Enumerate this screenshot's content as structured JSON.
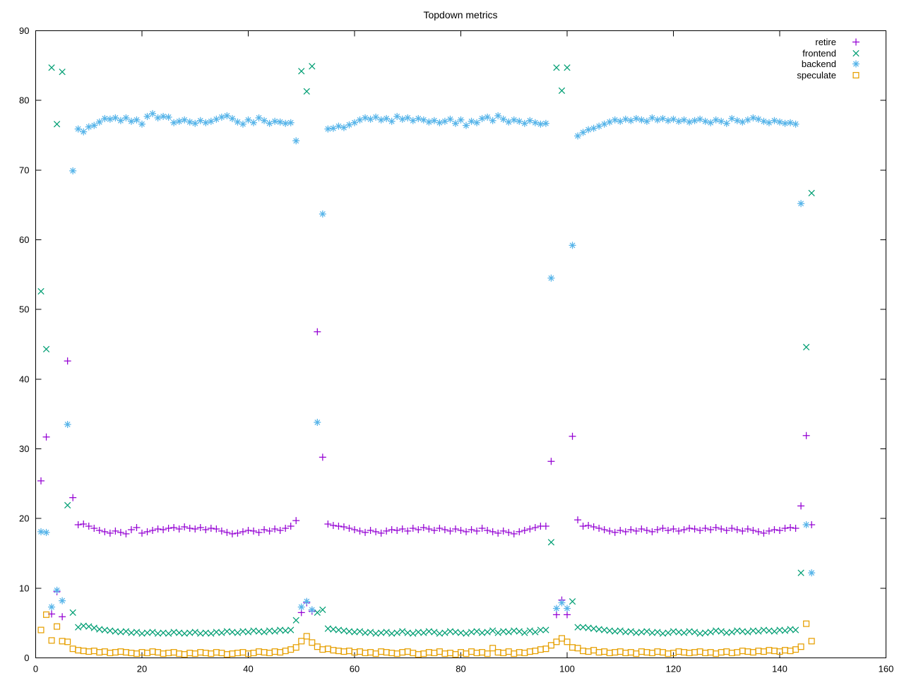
{
  "title": "Topdown metrics",
  "chart_data": {
    "type": "scatter",
    "title": "Topdown metrics",
    "xlabel": "",
    "ylabel": "",
    "xlim": [
      0,
      160
    ],
    "ylim": [
      0,
      90
    ],
    "x_ticks": [
      0,
      20,
      40,
      60,
      80,
      100,
      120,
      140,
      160
    ],
    "y_ticks": [
      0,
      10,
      20,
      30,
      40,
      50,
      60,
      70,
      80,
      90
    ],
    "grid": false,
    "legend_position": "top-right-inside",
    "x": [
      1,
      2,
      3,
      4,
      5,
      6,
      7,
      8,
      9,
      10,
      11,
      12,
      13,
      14,
      15,
      16,
      17,
      18,
      19,
      20,
      21,
      22,
      23,
      24,
      25,
      26,
      27,
      28,
      29,
      30,
      31,
      32,
      33,
      34,
      35,
      36,
      37,
      38,
      39,
      40,
      41,
      42,
      43,
      44,
      45,
      46,
      47,
      48,
      49,
      50,
      51,
      52,
      53,
      54,
      55,
      56,
      57,
      58,
      59,
      60,
      61,
      62,
      63,
      64,
      65,
      66,
      67,
      68,
      69,
      70,
      71,
      72,
      73,
      74,
      75,
      76,
      77,
      78,
      79,
      80,
      81,
      82,
      83,
      84,
      85,
      86,
      87,
      88,
      89,
      90,
      91,
      92,
      93,
      94,
      95,
      96,
      97,
      98,
      99,
      100,
      101,
      102,
      103,
      104,
      105,
      106,
      107,
      108,
      109,
      110,
      111,
      112,
      113,
      114,
      115,
      116,
      117,
      118,
      119,
      120,
      121,
      122,
      123,
      124,
      125,
      126,
      127,
      128,
      129,
      130,
      131,
      132,
      133,
      134,
      135,
      136,
      137,
      138,
      139,
      140,
      141,
      142,
      143,
      144,
      145,
      146
    ],
    "series": [
      {
        "name": "retire",
        "marker": "plus",
        "color": "#9400D3",
        "values": [
          25.4,
          31.7,
          6.3,
          9.5,
          5.9,
          42.6,
          23.0,
          19.1,
          19.2,
          18.9,
          18.6,
          18.3,
          18.1,
          17.9,
          18.2,
          18.0,
          17.8,
          18.4,
          18.7,
          17.9,
          18.1,
          18.3,
          18.5,
          18.4,
          18.6,
          18.7,
          18.5,
          18.8,
          18.6,
          18.5,
          18.7,
          18.4,
          18.6,
          18.5,
          18.2,
          18.0,
          17.8,
          17.9,
          18.1,
          18.3,
          18.2,
          18.0,
          18.4,
          18.2,
          18.5,
          18.3,
          18.6,
          18.9,
          19.7,
          6.5,
          7.9,
          6.7,
          46.8,
          28.8,
          19.2,
          19.0,
          18.9,
          18.8,
          18.6,
          18.4,
          18.2,
          18.0,
          18.3,
          18.1,
          17.9,
          18.2,
          18.4,
          18.3,
          18.5,
          18.2,
          18.6,
          18.4,
          18.7,
          18.5,
          18.3,
          18.6,
          18.4,
          18.2,
          18.5,
          18.3,
          18.1,
          18.4,
          18.2,
          18.6,
          18.3,
          18.1,
          17.9,
          18.2,
          18.0,
          17.8,
          18.1,
          18.3,
          18.5,
          18.7,
          18.9,
          18.9,
          28.2,
          6.2,
          8.3,
          6.2,
          31.8,
          19.8,
          18.9,
          19.0,
          18.8,
          18.6,
          18.4,
          18.2,
          18.0,
          18.3,
          18.1,
          18.4,
          18.2,
          18.5,
          18.3,
          18.1,
          18.4,
          18.6,
          18.3,
          18.5,
          18.2,
          18.4,
          18.6,
          18.5,
          18.3,
          18.6,
          18.4,
          18.7,
          18.5,
          18.3,
          18.6,
          18.4,
          18.2,
          18.5,
          18.3,
          18.1,
          17.9,
          18.2,
          18.4,
          18.3,
          18.6,
          18.7,
          18.6,
          21.8,
          31.9,
          19.1
        ]
      },
      {
        "name": "frontend",
        "marker": "cross",
        "color": "#009E73",
        "values": [
          52.6,
          44.3,
          84.7,
          76.6,
          84.1,
          21.9,
          6.5,
          4.4,
          4.6,
          4.5,
          4.3,
          4.1,
          4.0,
          3.9,
          3.8,
          3.7,
          3.8,
          3.6,
          3.7,
          3.5,
          3.6,
          3.7,
          3.5,
          3.6,
          3.5,
          3.7,
          3.6,
          3.5,
          3.6,
          3.7,
          3.5,
          3.6,
          3.5,
          3.7,
          3.6,
          3.8,
          3.7,
          3.6,
          3.8,
          3.7,
          3.9,
          3.8,
          3.7,
          3.9,
          3.8,
          4.0,
          3.9,
          4.0,
          5.4,
          84.2,
          81.3,
          84.9,
          6.5,
          6.9,
          4.2,
          4.1,
          4.0,
          3.9,
          3.8,
          3.7,
          3.8,
          3.6,
          3.7,
          3.5,
          3.6,
          3.7,
          3.5,
          3.6,
          3.8,
          3.6,
          3.5,
          3.7,
          3.6,
          3.8,
          3.7,
          3.5,
          3.6,
          3.8,
          3.7,
          3.6,
          3.5,
          3.7,
          3.8,
          3.6,
          3.7,
          3.9,
          3.6,
          3.8,
          3.7,
          3.9,
          3.8,
          3.6,
          3.9,
          3.7,
          4.0,
          4.0,
          16.6,
          84.7,
          81.4,
          84.7,
          8.1,
          4.4,
          4.4,
          4.3,
          4.2,
          4.1,
          4.0,
          3.9,
          3.8,
          3.9,
          3.7,
          3.8,
          3.6,
          3.7,
          3.8,
          3.6,
          3.7,
          3.5,
          3.6,
          3.8,
          3.7,
          3.6,
          3.8,
          3.7,
          3.5,
          3.6,
          3.7,
          3.9,
          3.8,
          3.6,
          3.7,
          3.9,
          3.8,
          3.7,
          3.9,
          3.8,
          4.0,
          3.9,
          3.8,
          4.0,
          3.9,
          4.1,
          4.0,
          12.2,
          44.6,
          66.7
        ]
      },
      {
        "name": "backend",
        "marker": "asterisk",
        "color": "#56B4E9",
        "values": [
          18.1,
          18.0,
          7.3,
          9.7,
          8.2,
          33.5,
          69.9,
          75.9,
          75.5,
          76.2,
          76.4,
          76.9,
          77.4,
          77.3,
          77.5,
          77.1,
          77.5,
          77.0,
          77.2,
          76.6,
          77.7,
          78.1,
          77.5,
          77.7,
          77.6,
          76.8,
          77.0,
          77.2,
          76.9,
          76.7,
          77.1,
          76.8,
          77.0,
          77.3,
          77.6,
          77.8,
          77.4,
          76.9,
          76.6,
          77.2,
          76.8,
          77.5,
          77.1,
          76.7,
          77.0,
          76.9,
          76.7,
          76.8,
          74.2,
          7.3,
          8.1,
          6.9,
          33.8,
          63.7,
          75.9,
          76.0,
          76.3,
          76.1,
          76.5,
          76.8,
          77.2,
          77.5,
          77.3,
          77.6,
          77.2,
          77.4,
          77.0,
          77.7,
          77.3,
          77.5,
          77.1,
          77.4,
          77.2,
          76.9,
          77.1,
          76.8,
          77.0,
          77.3,
          76.7,
          77.2,
          76.4,
          77.0,
          76.8,
          77.4,
          77.6,
          77.1,
          77.8,
          77.3,
          76.9,
          77.2,
          77.0,
          76.7,
          77.1,
          76.8,
          76.6,
          76.7,
          54.5,
          7.1,
          7.9,
          7.1,
          59.2,
          74.9,
          75.4,
          75.8,
          76.0,
          76.3,
          76.6,
          76.9,
          77.2,
          77.0,
          77.3,
          77.1,
          77.4,
          77.2,
          77.0,
          77.5,
          77.2,
          77.4,
          77.1,
          77.3,
          77.0,
          77.2,
          76.9,
          77.1,
          77.3,
          77.0,
          76.8,
          77.2,
          77.0,
          76.7,
          77.4,
          77.1,
          76.9,
          77.2,
          77.5,
          77.3,
          77.0,
          76.8,
          77.1,
          76.9,
          76.7,
          76.8,
          76.6,
          65.2,
          19.1,
          12.2
        ]
      },
      {
        "name": "speculate",
        "marker": "square",
        "color": "#E69F00",
        "values": [
          4.0,
          6.2,
          2.5,
          4.5,
          2.4,
          2.3,
          1.3,
          1.1,
          1.0,
          0.9,
          1.0,
          0.8,
          0.9,
          0.7,
          0.8,
          0.9,
          0.8,
          0.7,
          0.6,
          0.8,
          0.7,
          0.9,
          0.8,
          0.6,
          0.7,
          0.8,
          0.6,
          0.5,
          0.7,
          0.6,
          0.8,
          0.7,
          0.6,
          0.8,
          0.7,
          0.5,
          0.6,
          0.7,
          0.8,
          0.6,
          0.7,
          0.9,
          0.8,
          0.7,
          0.9,
          0.8,
          1.0,
          1.2,
          1.5,
          2.4,
          3.1,
          2.2,
          1.6,
          1.2,
          1.3,
          1.1,
          1.0,
          0.9,
          1.0,
          0.8,
          0.9,
          0.7,
          0.8,
          0.6,
          0.9,
          0.8,
          0.7,
          0.6,
          0.8,
          0.9,
          0.7,
          0.5,
          0.6,
          0.8,
          0.7,
          0.9,
          0.6,
          0.7,
          0.5,
          0.8,
          0.6,
          0.9,
          0.7,
          0.8,
          0.6,
          1.4,
          0.8,
          0.7,
          0.9,
          0.6,
          0.8,
          0.7,
          0.9,
          1.0,
          1.2,
          1.3,
          1.8,
          2.3,
          2.8,
          2.3,
          1.5,
          1.4,
          1.0,
          0.9,
          1.1,
          0.8,
          0.9,
          0.7,
          0.8,
          0.9,
          0.7,
          0.8,
          0.6,
          0.9,
          0.8,
          0.7,
          0.9,
          0.8,
          0.6,
          0.7,
          0.9,
          0.8,
          0.7,
          0.8,
          0.9,
          0.7,
          0.8,
          0.6,
          0.8,
          0.9,
          0.7,
          0.8,
          1.0,
          0.9,
          0.8,
          1.0,
          0.9,
          1.1,
          1.0,
          0.9,
          1.1,
          1.0,
          1.2,
          1.6,
          4.9,
          2.4
        ]
      }
    ]
  }
}
